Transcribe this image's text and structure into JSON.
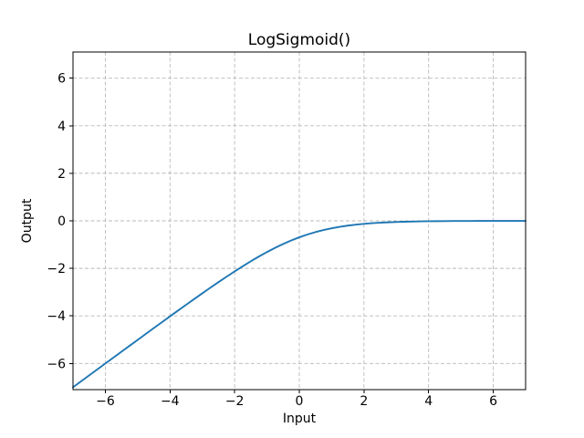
{
  "chart_data": {
    "type": "line",
    "title": "LogSigmoid()",
    "xlabel": "Input",
    "ylabel": "Output",
    "xlim": [
      -7,
      7
    ],
    "ylim": [
      -7.1,
      7.1
    ],
    "grid": true,
    "grid_style": "dashed",
    "legend": false,
    "xticks": {
      "values": [
        -6,
        -4,
        -2,
        0,
        2,
        4,
        6
      ],
      "labels": [
        "−6",
        "−4",
        "−2",
        "0",
        "2",
        "4",
        "6"
      ]
    },
    "yticks": {
      "values": [
        -6,
        -4,
        -2,
        0,
        2,
        4,
        6
      ],
      "labels": [
        "−6",
        "−4",
        "−2",
        "0",
        "2",
        "4",
        "6"
      ]
    },
    "colors": {
      "line": "#1f77b4",
      "grid": "#b9b9b9",
      "spine": "#000000",
      "text": "#000000",
      "background": "#ffffff"
    },
    "series": [
      {
        "name": "LogSigmoid",
        "color": "#1f77b4",
        "x": [
          -7,
          -6.75,
          -6.5,
          -6.25,
          -6,
          -5.75,
          -5.5,
          -5.25,
          -5,
          -4.75,
          -4.5,
          -4.25,
          -4,
          -3.75,
          -3.5,
          -3.25,
          -3,
          -2.75,
          -2.5,
          -2.25,
          -2,
          -1.75,
          -1.5,
          -1.25,
          -1,
          -0.75,
          -0.5,
          -0.25,
          0,
          0.25,
          0.5,
          0.75,
          1,
          1.25,
          1.5,
          1.75,
          2,
          2.25,
          2.5,
          2.75,
          3,
          3.25,
          3.5,
          3.75,
          4,
          4.25,
          4.5,
          4.75,
          5,
          5.25,
          5.5,
          5.75,
          6,
          6.25,
          6.5,
          6.75,
          7
        ],
        "y": [
          -7.0009,
          -6.7512,
          -6.5015,
          -6.2519,
          -6.0025,
          -5.7532,
          -5.5041,
          -5.2552,
          -5.0067,
          -4.7586,
          -4.511,
          -4.2642,
          -4.0181,
          -3.7732,
          -3.5297,
          -3.288,
          -3.0486,
          -2.812,
          -2.5789,
          -2.3502,
          -2.1269,
          -1.9102,
          -1.7014,
          -1.5019,
          -1.3133,
          -1.1369,
          -0.9741,
          -0.8259,
          -0.6931,
          -0.5759,
          -0.4741,
          -0.3869,
          -0.3133,
          -0.2519,
          -0.2014,
          -0.1602,
          -0.1269,
          -0.1002,
          -0.0789,
          -0.062,
          -0.0486,
          -0.038,
          -0.0297,
          -0.0232,
          -0.0181,
          -0.0142,
          -0.011,
          -0.0086,
          -0.0067,
          -0.0052,
          -0.0041,
          -0.0032,
          -0.0025,
          -0.0019,
          -0.0015,
          -0.0012,
          -0.0009
        ]
      }
    ]
  }
}
